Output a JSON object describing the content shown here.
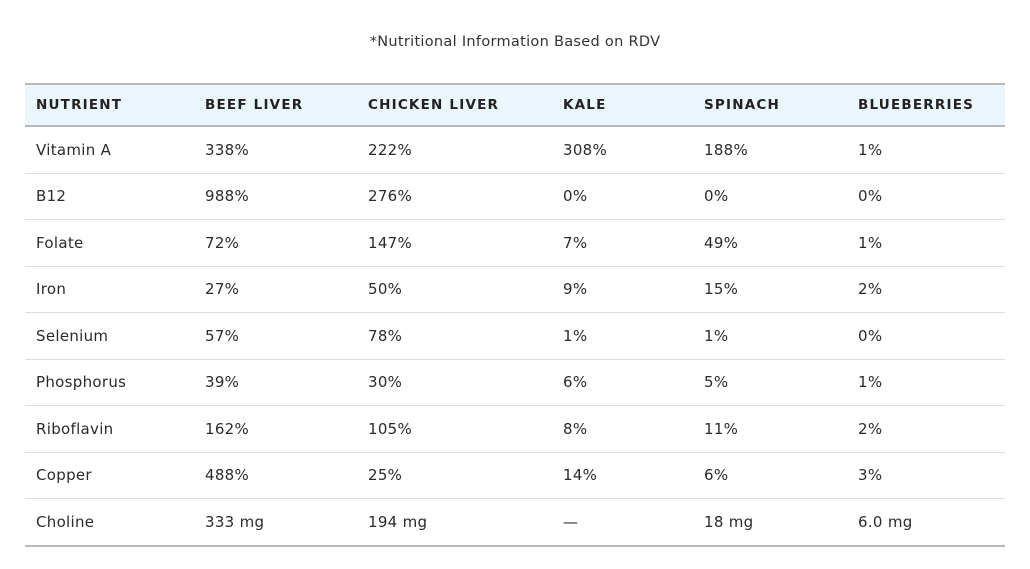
{
  "caption": "*Nutritional Information Based on RDV",
  "table": {
    "headers": [
      "NUTRIENT",
      "BEEF LIVER",
      "CHICKEN LIVER",
      "KALE",
      "SPINACH",
      "BLUEBERRIES"
    ],
    "rows": [
      [
        "Vitamin A",
        "338%",
        "222%",
        "308%",
        "188%",
        "1%"
      ],
      [
        "B12",
        "988%",
        "276%",
        "0%",
        "0%",
        "0%"
      ],
      [
        "Folate",
        "72%",
        "147%",
        "7%",
        "49%",
        "1%"
      ],
      [
        "Iron",
        "27%",
        "50%",
        "9%",
        "15%",
        "2%"
      ],
      [
        "Selenium",
        "57%",
        "78%",
        "1%",
        "1%",
        "0%"
      ],
      [
        "Phosphorus",
        "39%",
        "30%",
        "6%",
        "5%",
        "1%"
      ],
      [
        "Riboflavin",
        "162%",
        "105%",
        "8%",
        "11%",
        "2%"
      ],
      [
        "Copper",
        "488%",
        "25%",
        "14%",
        "6%",
        "3%"
      ],
      [
        "Choline",
        "333 mg",
        "194 mg",
        "—",
        "18 mg",
        "6.0 mg"
      ]
    ]
  }
}
